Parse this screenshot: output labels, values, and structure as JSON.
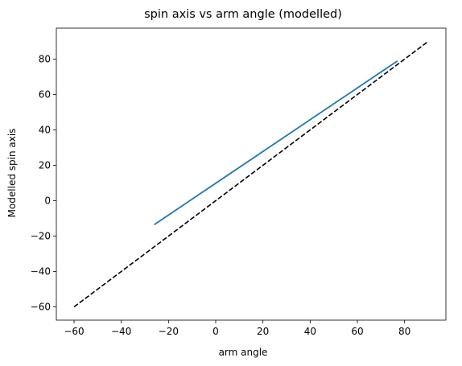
{
  "chart_data": {
    "type": "line",
    "title": "spin axis vs arm angle (modelled)",
    "xlabel": "arm angle",
    "ylabel": "Modelled spin axis",
    "xlim": [
      -67.5,
      97.5
    ],
    "ylim": [
      -67.5,
      97.5
    ],
    "xticks": [
      -60,
      -40,
      -20,
      0,
      20,
      40,
      60,
      80
    ],
    "yticks": [
      -60,
      -40,
      -20,
      0,
      20,
      40,
      60,
      80
    ],
    "xtick_labels": [
      "−60",
      "−40",
      "−20",
      "0",
      "20",
      "40",
      "60",
      "80"
    ],
    "ytick_labels": [
      "−60",
      "−40",
      "−20",
      "0",
      "20",
      "40",
      "60",
      "80"
    ],
    "grid": false,
    "series": [
      {
        "style": "solid",
        "color": "#1f77b4",
        "x": [
          -26,
          77
        ],
        "y": [
          -13.5,
          79
        ]
      },
      {
        "style": "dashed",
        "color": "#000000",
        "x": [
          -60,
          90
        ],
        "y": [
          -60,
          90
        ]
      }
    ]
  }
}
